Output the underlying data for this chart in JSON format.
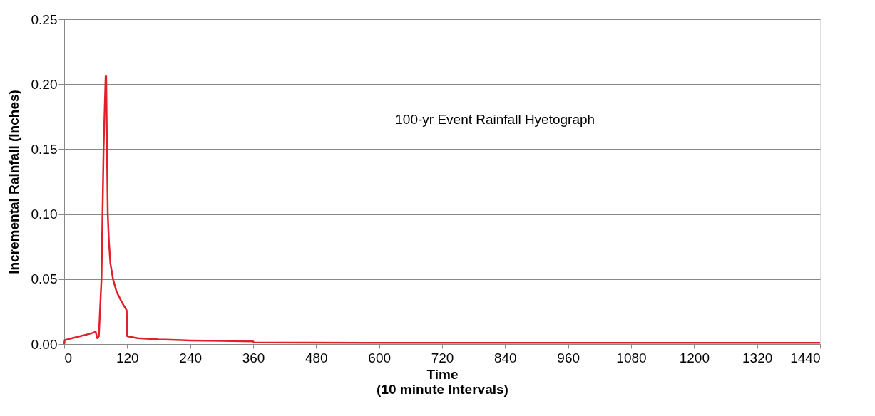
{
  "chart_data": {
    "type": "line",
    "xlabel": "Time\n(10 minute Intervals)",
    "ylabel": "Incremental Rainfall  (Inches)",
    "annotations": [
      "100-yr Event Rainfall Hyetograph"
    ],
    "series": [
      {
        "color": "#e0202a",
        "x": [
          0,
          1,
          10,
          30,
          50,
          60,
          63,
          66,
          71,
          75,
          79,
          80,
          81.5,
          83,
          85,
          88,
          93,
          100,
          110,
          119,
          120,
          140,
          180,
          240,
          300,
          360,
          361,
          600,
          1440
        ],
        "values": [
          0.0,
          0.003,
          0.004,
          0.006,
          0.008,
          0.0095,
          0.0045,
          0.006,
          0.05,
          0.15,
          0.2065,
          0.2065,
          0.15,
          0.1,
          0.08,
          0.062,
          0.05,
          0.04,
          0.032,
          0.026,
          0.006,
          0.0045,
          0.0035,
          0.0028,
          0.0024,
          0.002,
          0.0012,
          0.001,
          0.001
        ]
      }
    ],
    "xlim": [
      0,
      1440
    ],
    "xticks": [
      0,
      120,
      240,
      360,
      480,
      600,
      720,
      840,
      960,
      1080,
      1200,
      1320,
      1440
    ],
    "ylim": [
      0,
      0.25
    ],
    "yticks": [
      {
        "value": 0,
        "label": "0.00"
      },
      0.05,
      {
        "value": 0.1,
        "label": "0.10"
      },
      0.15,
      {
        "value": 0.2,
        "label": "0.20"
      },
      0.25
    ],
    "grid": "y",
    "marker": "none",
    "line_style": "solid"
  }
}
